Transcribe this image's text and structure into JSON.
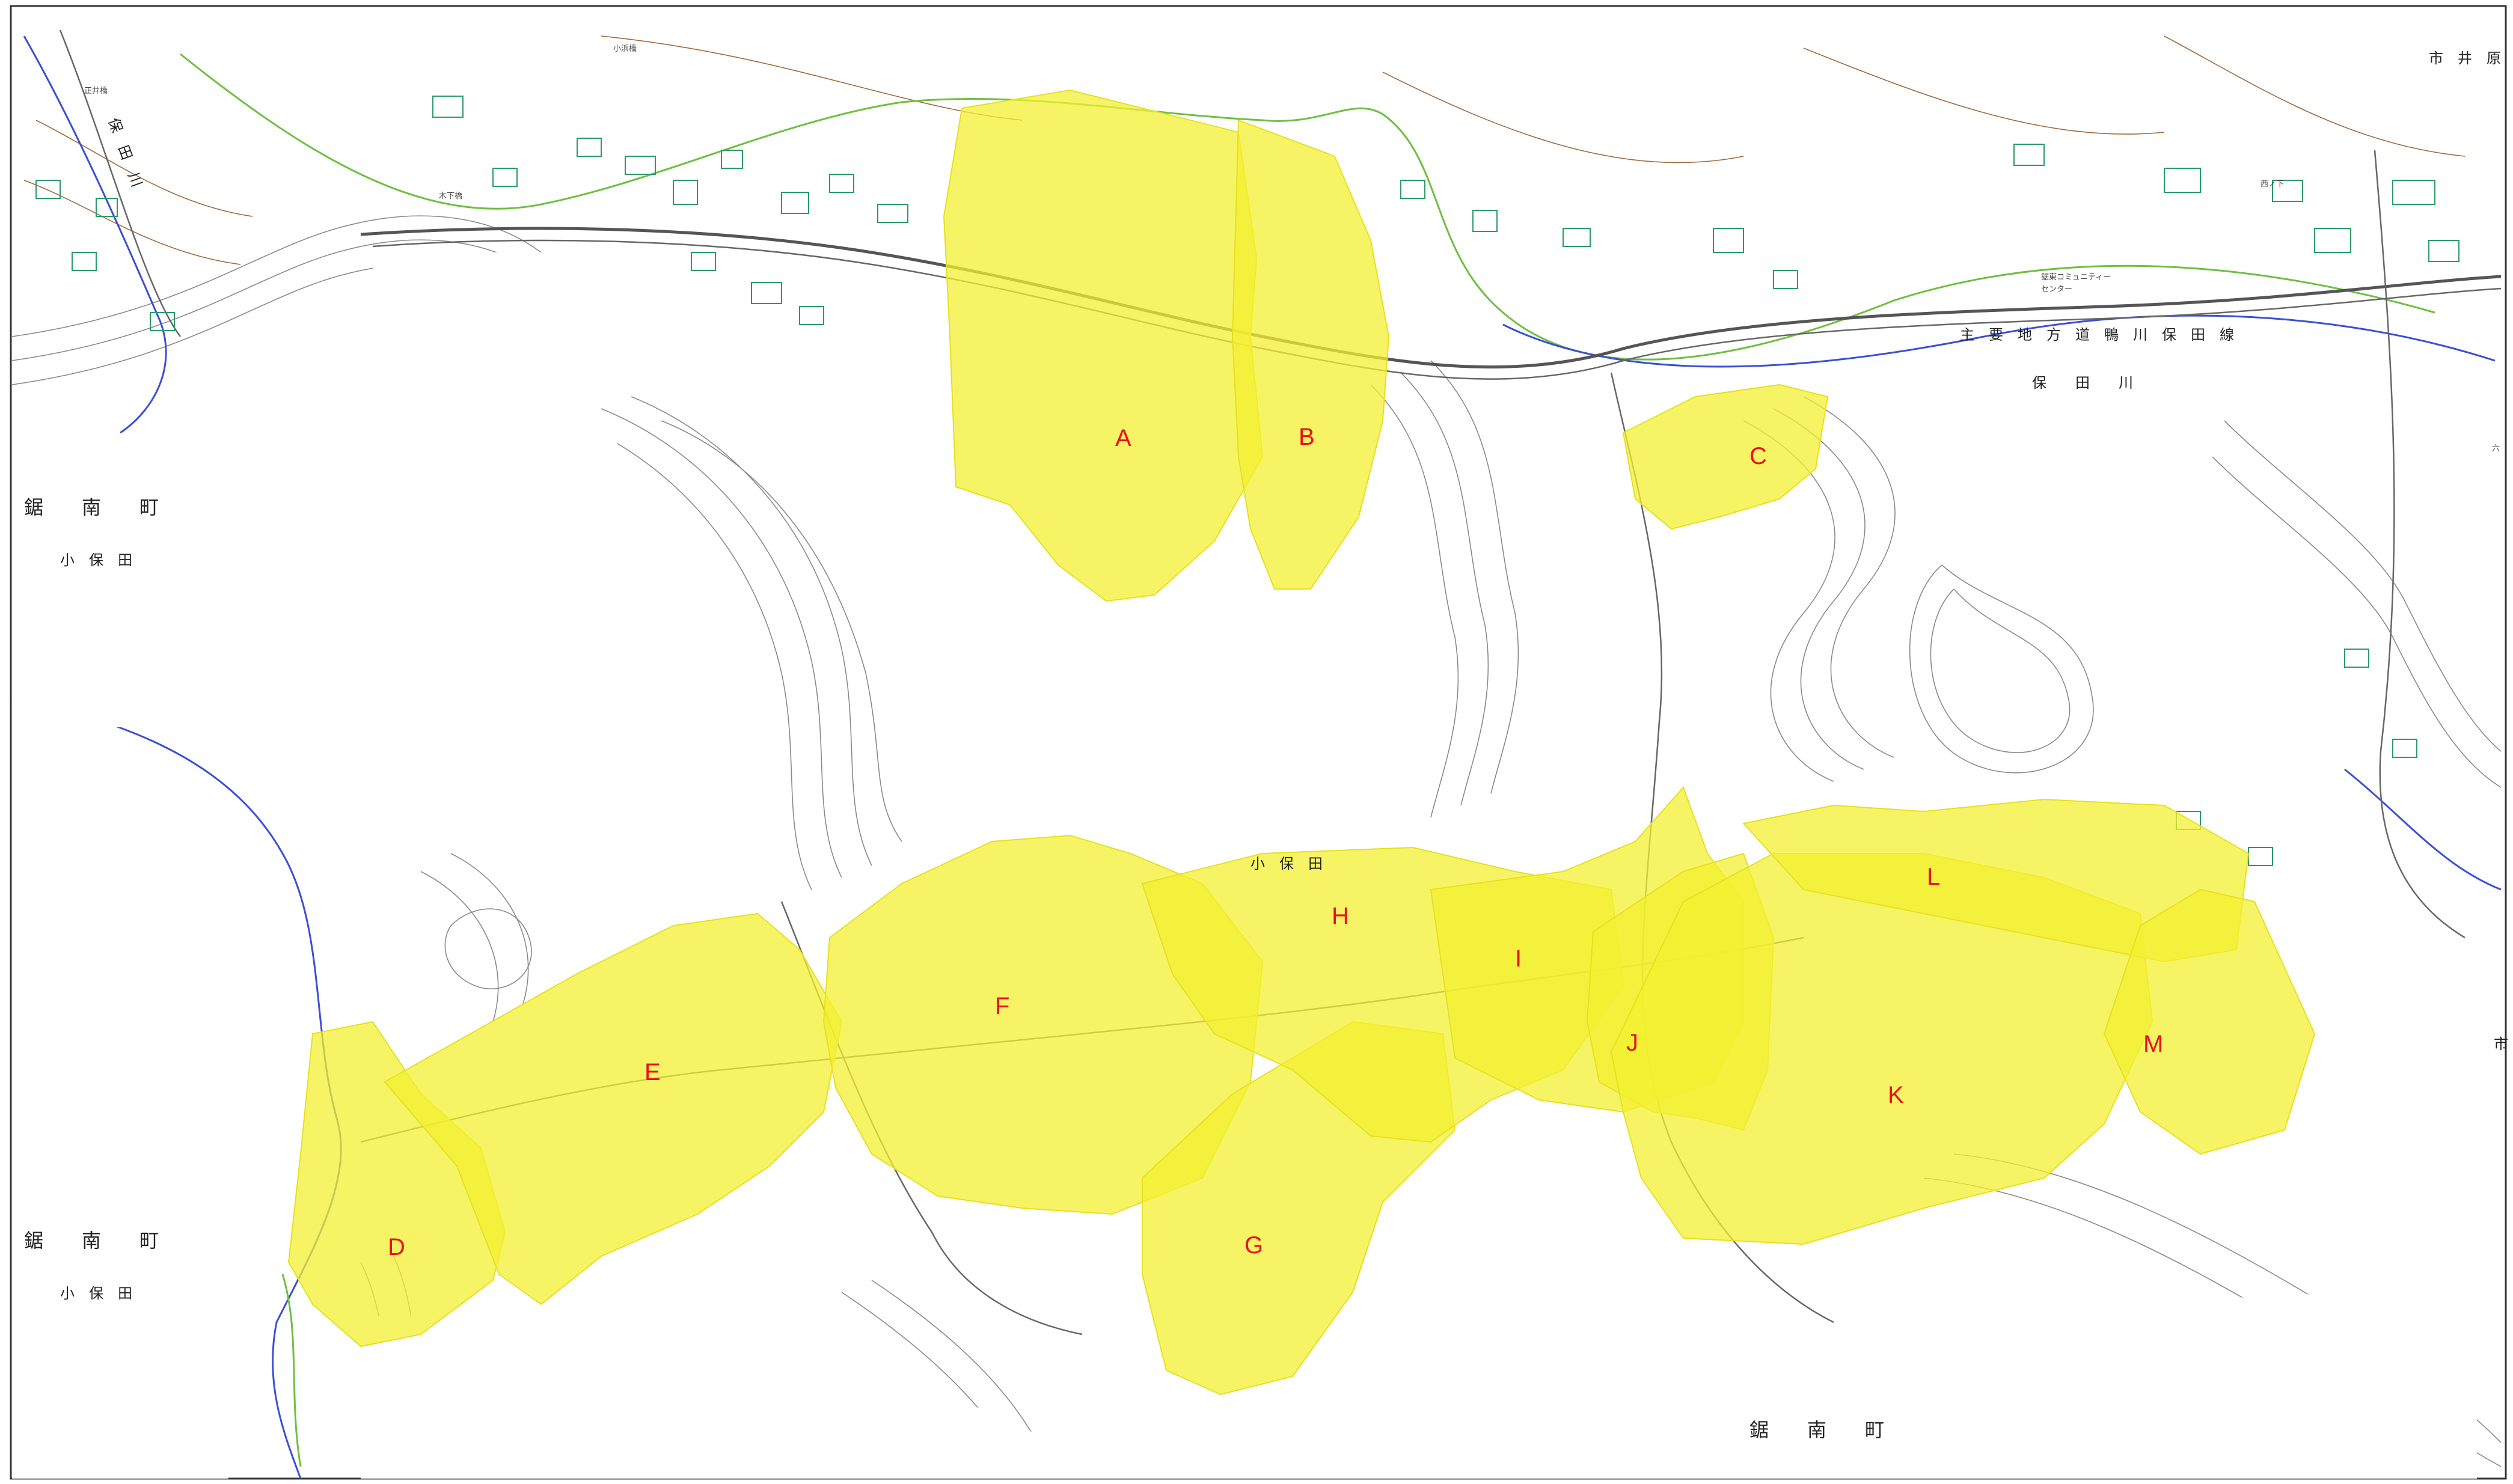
{
  "map": {
    "zones": [
      {
        "id": "A",
        "label": "A"
      },
      {
        "id": "B",
        "label": "B"
      },
      {
        "id": "C",
        "label": "C"
      },
      {
        "id": "D",
        "label": "D"
      },
      {
        "id": "E",
        "label": "E"
      },
      {
        "id": "F",
        "label": "F"
      },
      {
        "id": "G",
        "label": "G"
      },
      {
        "id": "H",
        "label": "H"
      },
      {
        "id": "I",
        "label": "I"
      },
      {
        "id": "J",
        "label": "J"
      },
      {
        "id": "K",
        "label": "K"
      },
      {
        "id": "L",
        "label": "L"
      },
      {
        "id": "M",
        "label": "M"
      }
    ],
    "places": {
      "town_1": "鋸　　南　　町",
      "district_1": "小　保　田",
      "town_2": "鋸　　南　　町",
      "district_2": "小　保　田",
      "town_3": "鋸　　南　　町",
      "district_top_right": "市　井　原",
      "river": "保　　田　　川",
      "river_left": "保　田　川",
      "road": "主　要　地　方　道　鴨　川　保　田　線",
      "facility": "鋸東コミュニティー",
      "facility_2": "センター",
      "area_mid": "小　保　田",
      "bridge_1": "木下橋",
      "bridge_2": "小浜橋",
      "bridge_3": "正井橋",
      "area_right": "西ノ下",
      "right_edge": "市",
      "right_edge_2": "六"
    },
    "colors": {
      "zone_fill": "#f3f030",
      "zone_label": "#e8121a",
      "contour": "#8a8a8a",
      "river": "#3a4fd6",
      "building": "#2a9a6a"
    }
  }
}
